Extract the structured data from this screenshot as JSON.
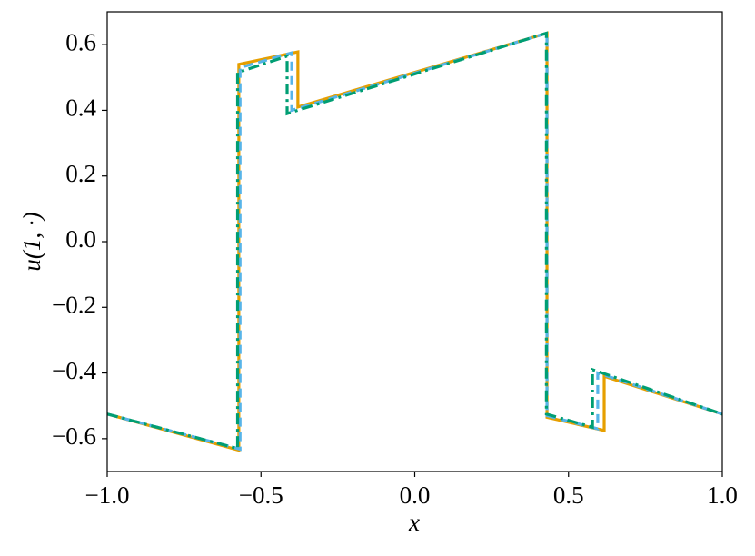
{
  "chart_data": {
    "type": "line",
    "xlabel": "x",
    "ylabel": "u(1, ·)",
    "xlim": [
      -1,
      1
    ],
    "ylim": [
      -0.7,
      0.7
    ],
    "xticks": [
      {
        "value": -1,
        "label": "−1.0"
      },
      {
        "value": -0.5,
        "label": "−0.5"
      },
      {
        "value": 0,
        "label": "0.0"
      },
      {
        "value": 0.5,
        "label": "0.5"
      },
      {
        "value": 1,
        "label": "1.0"
      }
    ],
    "yticks": [
      {
        "value": -0.6,
        "label": "−0.6"
      },
      {
        "value": -0.4,
        "label": "−0.4"
      },
      {
        "value": -0.2,
        "label": "−0.2"
      },
      {
        "value": 0,
        "label": "0.0"
      },
      {
        "value": 0.2,
        "label": "0.2"
      },
      {
        "value": 0.4,
        "label": "0.4"
      },
      {
        "value": 0.6,
        "label": "0.6"
      }
    ],
    "series": [
      {
        "color": "#E69F00",
        "dash": "solid",
        "x": [
          -1,
          -0.572,
          -0.572,
          -0.38,
          -0.38,
          0.43,
          0.43,
          0.616,
          0.616,
          1
        ],
        "values": [
          -0.525,
          -0.635,
          0.54,
          0.578,
          0.41,
          0.635,
          -0.535,
          -0.575,
          -0.41,
          -0.525
        ]
      },
      {
        "color": "#56B4E9",
        "dash": "dashed",
        "x": [
          -1,
          -0.568,
          -0.568,
          -0.4,
          -0.4,
          0.43,
          0.43,
          0.595,
          0.595,
          1
        ],
        "values": [
          -0.525,
          -0.632,
          0.53,
          0.575,
          0.4,
          0.635,
          -0.53,
          -0.57,
          -0.4,
          -0.525
        ]
      },
      {
        "color": "#009E73",
        "dash": "dashdot",
        "x": [
          -1,
          -0.576,
          -0.576,
          -0.415,
          -0.415,
          0.428,
          0.428,
          0.578,
          0.578,
          1
        ],
        "values": [
          -0.525,
          -0.63,
          0.515,
          0.565,
          0.39,
          0.635,
          -0.525,
          -0.565,
          -0.39,
          -0.525
        ]
      }
    ]
  }
}
